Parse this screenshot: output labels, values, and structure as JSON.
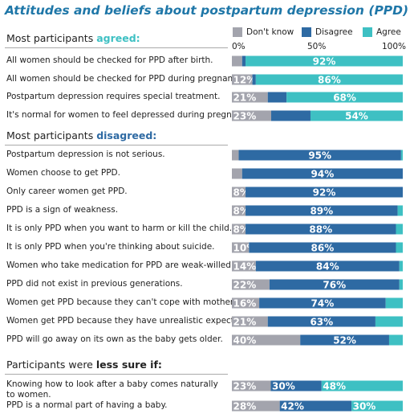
{
  "title": "Attitudes and beliefs about postpartum depression (PPD)",
  "colors": {
    "title": "#1f77a8",
    "dont_know": "#a3a4ad",
    "disagree": "#2e6aa3",
    "agree": "#3ec0c3",
    "label_text": "#ffffff",
    "agreed_accent": "#3ec0c3",
    "disagreed_accent": "#2e6aa3"
  },
  "sections": {
    "agreed": {
      "prefix": "Most participants ",
      "accent": "agreed:"
    },
    "disagreed": {
      "prefix": "Most participants ",
      "accent": "disagreed:"
    },
    "less_sure": {
      "prefix": "Participants were ",
      "accent": "less sure if:"
    }
  },
  "legend": {
    "dont_know": "Don't know",
    "disagree": "Disagree",
    "agree": "Agree"
  },
  "axis": {
    "ticks": [
      "0%",
      "50%",
      "100%"
    ]
  },
  "chart_data": {
    "type": "bar",
    "orientation": "horizontal",
    "stacked": true,
    "xlim": [
      0,
      100
    ],
    "legend_position": "top-right",
    "series_names": [
      "Don't know",
      "Disagree",
      "Agree"
    ],
    "rows": [
      {
        "label": "All women should be checked for PPD after birth.",
        "values": [
          6,
          2,
          92
        ],
        "labels": [
          "",
          "",
          "92%"
        ]
      },
      {
        "label": "All women should be checked for PPD during pregnancy.",
        "values": [
          12,
          2,
          86
        ],
        "labels": [
          "12%",
          "",
          "86%"
        ]
      },
      {
        "label": "Postpartum depression requires special treatment.",
        "values": [
          21,
          11,
          68
        ],
        "labels": [
          "21%",
          "",
          "68%"
        ]
      },
      {
        "label": "It's normal for women to feel depressed during pregnancy.",
        "values": [
          23,
          23,
          54
        ],
        "labels": [
          "23%",
          "",
          "54%"
        ]
      },
      {
        "label": "Postpartum depression is not serious.",
        "values": [
          4,
          95,
          1
        ],
        "labels": [
          "",
          "95%",
          ""
        ]
      },
      {
        "label": "Women choose to get PPD.",
        "values": [
          6,
          94,
          0
        ],
        "labels": [
          "",
          "94%",
          ""
        ]
      },
      {
        "label": "Only career women get PPD.",
        "values": [
          8,
          92,
          0
        ],
        "labels": [
          "8%",
          "92%",
          ""
        ]
      },
      {
        "label": "PPD is a sign of weakness.",
        "values": [
          8,
          89,
          3
        ],
        "labels": [
          "8%",
          "89%",
          ""
        ]
      },
      {
        "label": "It is only PPD when you want to harm or kill the child.",
        "values": [
          8,
          88,
          4
        ],
        "labels": [
          "8%",
          "88%",
          ""
        ]
      },
      {
        "label": "It is only PPD when you're thinking about suicide.",
        "values": [
          10,
          86,
          4
        ],
        "labels": [
          "10%",
          "86%",
          ""
        ]
      },
      {
        "label": "Women who take medication for PPD are weak-willed.",
        "values": [
          14,
          84,
          2
        ],
        "labels": [
          "14%",
          "84%",
          ""
        ]
      },
      {
        "label": "PPD did not exist in previous generations.",
        "values": [
          22,
          76,
          2
        ],
        "labels": [
          "22%",
          "76%",
          ""
        ]
      },
      {
        "label": "Women get PPD because they can't cope with motherhood.",
        "values": [
          16,
          74,
          10
        ],
        "labels": [
          "16%",
          "74%",
          ""
        ]
      },
      {
        "label": "Women get PPD because they have unrealistic expectations.",
        "values": [
          21,
          63,
          16
        ],
        "labels": [
          "21%",
          "63%",
          ""
        ]
      },
      {
        "label": "PPD will go away on its own as the baby gets older.",
        "values": [
          40,
          52,
          8
        ],
        "labels": [
          "40%",
          "52%",
          ""
        ]
      },
      {
        "label": "Knowing how to look after a baby comes naturally to women.",
        "values": [
          23,
          30,
          48
        ],
        "labels": [
          "23%",
          "30%",
          "48%"
        ]
      },
      {
        "label": "PPD is a normal part of having a baby.",
        "values": [
          28,
          42,
          30
        ],
        "labels": [
          "28%",
          "42%",
          "30%"
        ]
      }
    ]
  }
}
